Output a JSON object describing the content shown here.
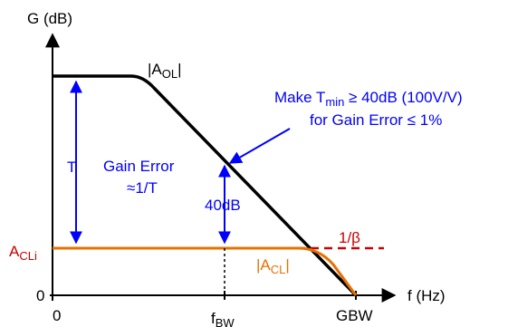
{
  "axes": {
    "y_title": "G (dB)",
    "x_title": "f (Hz)",
    "y_zero": "0",
    "x_zero": "0",
    "x_fbw_main": "f",
    "x_fbw_sub": "BW",
    "x_gbw": "GBW"
  },
  "labels": {
    "aol_pre": "|A",
    "aol_sub": "OL",
    "aol_post": "|",
    "acli_main": "A",
    "acli_sub": "CLi",
    "beta": "1/β",
    "acl_pre": "|A",
    "acl_sub": "CL",
    "acl_post": "|",
    "t_label": "T",
    "gain_error_line1": "Gain Error",
    "gain_error_line2": "≈1/T",
    "db40": "40dB",
    "note1_pre": "Make T",
    "note1_sub": "min",
    "note1_post": " ≥ 40dB (100V/V)",
    "note2": "for Gain Error ≤ 1%"
  },
  "colors": {
    "axis": "#000000",
    "aol_curve": "#000000",
    "annotation": "#0000ff",
    "beta_line": "#cc0000",
    "acl_curve": "#e87000"
  }
}
